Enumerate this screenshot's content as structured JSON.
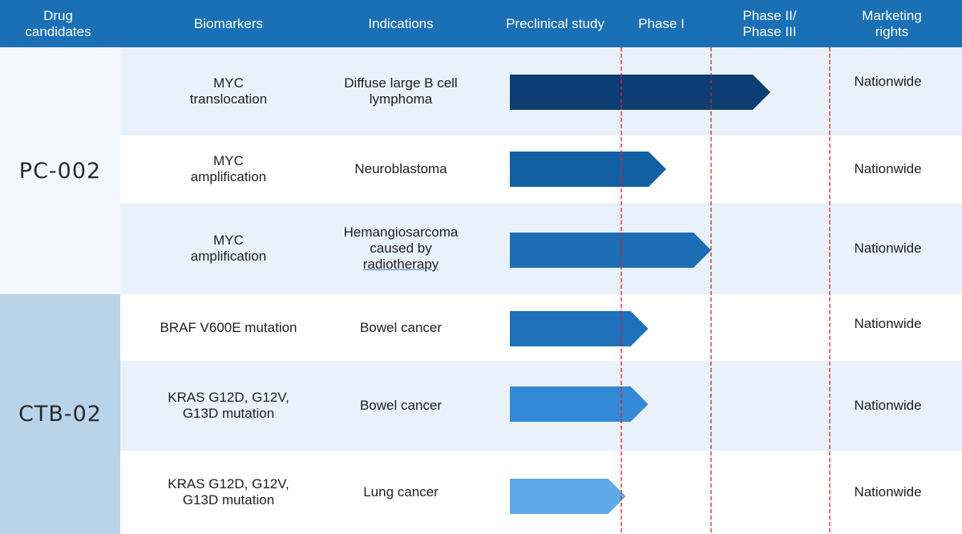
{
  "header": {
    "drug_candidates": "Drug\ncandidates",
    "biomarkers": "Biomarkers",
    "indications": "Indications",
    "preclinical": "Preclinical study",
    "phase1": "Phase I",
    "phase2_3": "Phase II/\nPhase III",
    "marketing": "Marketing\nrights"
  },
  "candidates": [
    {
      "name": "PC-002"
    },
    {
      "name": "CTB-02"
    }
  ],
  "rows": [
    {
      "biomarker": "MYC\ntranslocation",
      "indication": "Diffuse large B cell\nlymphoma",
      "rights": "Nationwide",
      "progress_stage": 2.5,
      "color": "#0d3d73"
    },
    {
      "biomarker": "MYC\namplification",
      "indication": "Neuroblastoma",
      "rights": "Nationwide",
      "progress_stage": 1.5,
      "color": "#135fa3"
    },
    {
      "biomarker": "MYC\namplification",
      "indication": "Hemangiosarcoma\ncaused by",
      "indication_extra": "radiotherapy",
      "rights": "Nationwide",
      "progress_stage": 2.0,
      "color": "#1c6db3"
    },
    {
      "biomarker": "BRAF V600E mutation",
      "indication": "Bowel cancer",
      "rights": "Nationwide",
      "progress_stage": 1.3,
      "color": "#1d70b9"
    },
    {
      "biomarker": "KRAS G12D, G12V,\nG13D mutation",
      "indication": "Bowel cancer",
      "rights": "Nationwide",
      "progress_stage": 1.3,
      "color": "#3389d6"
    },
    {
      "biomarker": "KRAS G12D, G12V,\nG13D mutation",
      "indication": "Lung cancer",
      "rights": "Nationwide",
      "progress_stage": 1.05,
      "color": "#5ea9e8"
    }
  ],
  "colors": {
    "header_bg": "#1a6fb5",
    "row_light": "#e9f2fa",
    "row_white": "#ffffff",
    "cand1_bg": "#f3f8fd",
    "cand2_bg": "#b9d3e8",
    "phase_line": "#e02020"
  }
}
